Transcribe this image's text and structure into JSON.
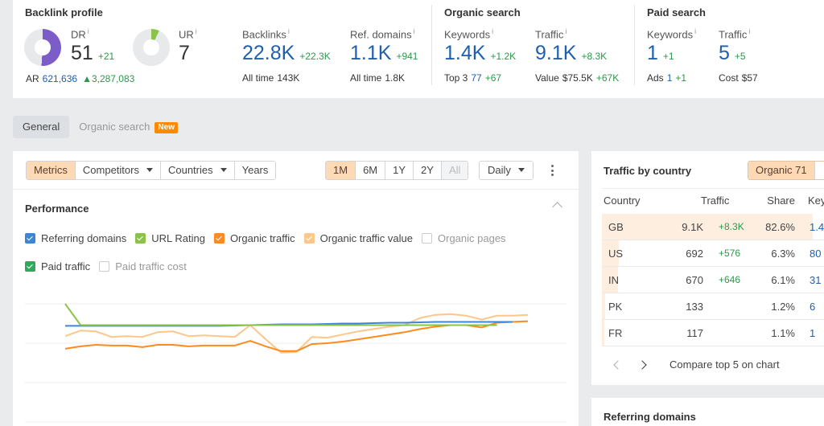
{
  "backlink_profile": {
    "title": "Backlink profile",
    "dr": {
      "label": "DR",
      "info": "i",
      "value": "51",
      "delta": "+21",
      "color": "#7b5cc9",
      "percent": 51
    },
    "ur": {
      "label": "UR",
      "info": "i",
      "value": "7",
      "color": "#8bc34a",
      "percent": 7
    },
    "ar": {
      "label": "AR",
      "value": "621,636",
      "delta": "▲3,287,083"
    },
    "backlinks": {
      "label": "Backlinks",
      "info": "i",
      "value": "22.8K",
      "delta": "+22.3K",
      "sub_label": "All time",
      "sub_value": "143K"
    },
    "ref_domains": {
      "label": "Ref. domains",
      "info": "i",
      "value": "1.1K",
      "delta": "+941",
      "sub_label": "All time",
      "sub_value": "1.8K"
    }
  },
  "organic_search": {
    "title": "Organic search",
    "keywords": {
      "label": "Keywords",
      "info": "i",
      "value": "1.4K",
      "delta": "+1.2K",
      "sub_label": "Top 3",
      "sub_value": "77",
      "sub_delta": "+67"
    },
    "traffic": {
      "label": "Traffic",
      "info": "i",
      "value": "9.1K",
      "delta": "+8.3K",
      "sub_label": "Value",
      "sub_value": "$75.5K",
      "sub_delta": "+67K"
    }
  },
  "paid_search": {
    "title": "Paid search",
    "keywords": {
      "label": "Keywords",
      "info": "i",
      "value": "1",
      "delta": "+1",
      "sub_label": "Ads",
      "sub_value": "1",
      "sub_delta": "+1"
    },
    "traffic": {
      "label": "Traffic",
      "info": "i",
      "value": "5",
      "delta": "+5",
      "sub_label": "Cost",
      "sub_value": "$57"
    }
  },
  "tabs": {
    "general": "General",
    "organic_search": "Organic search",
    "new_badge": "New"
  },
  "toolbar": {
    "view_buttons": [
      "Metrics",
      "Competitors",
      "Countries",
      "Years"
    ],
    "range_buttons": [
      "1M",
      "6M",
      "1Y",
      "2Y",
      "All"
    ],
    "interval": "Daily"
  },
  "performance": {
    "title": "Performance",
    "checkboxes": [
      {
        "label": "Referring domains",
        "checked": true,
        "color": "#3b86d9"
      },
      {
        "label": "URL Rating",
        "checked": true,
        "color": "#8bc34a"
      },
      {
        "label": "Organic traffic",
        "checked": true,
        "color": "#ff8a1f"
      },
      {
        "label": "Organic traffic value",
        "checked": true,
        "color": "#ffc68a"
      },
      {
        "label": "Organic pages",
        "checked": false
      },
      {
        "label": "Paid traffic",
        "checked": true,
        "color": "#2eaa5c"
      },
      {
        "label": "Paid traffic cost",
        "checked": false
      }
    ]
  },
  "chart_data": {
    "type": "line",
    "title": "Performance",
    "xlabel": "",
    "ylabel": "",
    "grid": true,
    "x": [
      1,
      2,
      3,
      4,
      5,
      6,
      7,
      8,
      9,
      10,
      11,
      12,
      13,
      14,
      15,
      16,
      17,
      18,
      19,
      20,
      21,
      22,
      23,
      24,
      25,
      26,
      27,
      28,
      29,
      30,
      31
    ],
    "series": [
      {
        "name": "Referring domains",
        "color": "#3b86d9",
        "values": [
          72,
          72,
          72,
          72,
          72,
          72,
          72,
          72,
          72,
          72,
          72,
          72.5,
          73,
          73.5,
          74,
          74,
          74,
          74.5,
          75,
          75,
          75.5,
          76,
          76,
          76.5,
          77,
          77,
          77,
          77,
          77,
          77,
          null
        ]
      },
      {
        "name": "URL Rating",
        "color": "#8bc34a",
        "values": [
          100,
          73,
          73,
          73,
          73,
          73,
          73,
          73,
          73,
          73,
          73,
          73,
          73,
          73,
          73,
          73,
          73,
          73,
          73,
          73,
          73,
          73,
          73,
          73,
          73,
          73,
          73,
          73,
          73,
          null,
          null
        ]
      },
      {
        "name": "Organic traffic",
        "color": "#ff8a1f",
        "values": [
          43,
          46,
          48,
          47,
          47,
          45,
          48,
          48,
          46,
          47,
          47,
          47,
          53,
          46,
          40,
          40,
          49,
          50,
          52,
          55,
          58,
          61,
          64,
          68,
          71,
          73,
          73,
          70,
          76,
          77,
          78
        ]
      },
      {
        "name": "Organic traffic value",
        "color": "#ffc68a",
        "values": [
          59,
          66,
          65,
          58,
          59,
          58,
          64,
          65,
          59,
          60,
          59,
          58,
          73,
          55,
          38,
          39,
          58,
          57,
          61,
          65,
          68,
          71,
          73,
          82,
          86,
          87,
          85,
          80,
          85,
          85,
          86
        ]
      }
    ]
  },
  "traffic_by_country": {
    "title": "Traffic by country",
    "tab_label": "Organic 71",
    "columns": [
      "Country",
      "Traffic",
      "Share",
      "Key"
    ],
    "rows": [
      {
        "country": "GB",
        "traffic": "9.1K",
        "delta": "+8.3K",
        "share": "82.6%",
        "keywords": "1.4",
        "bar_pct": 100
      },
      {
        "country": "US",
        "traffic": "692",
        "delta": "+576",
        "share": "6.3%",
        "keywords": "80",
        "bar_pct": 8
      },
      {
        "country": "IN",
        "traffic": "670",
        "delta": "+646",
        "share": "6.1%",
        "keywords": "31",
        "bar_pct": 7.5
      },
      {
        "country": "PK",
        "traffic": "133",
        "delta": "",
        "share": "1.2%",
        "keywords": "6",
        "bar_pct": 1.5
      },
      {
        "country": "FR",
        "traffic": "117",
        "delta": "",
        "share": "1.1%",
        "keywords": "1",
        "bar_pct": 1.3
      }
    ],
    "compare_label": "Compare top 5 on chart"
  },
  "referring_domains": {
    "title": "Referring domains"
  }
}
